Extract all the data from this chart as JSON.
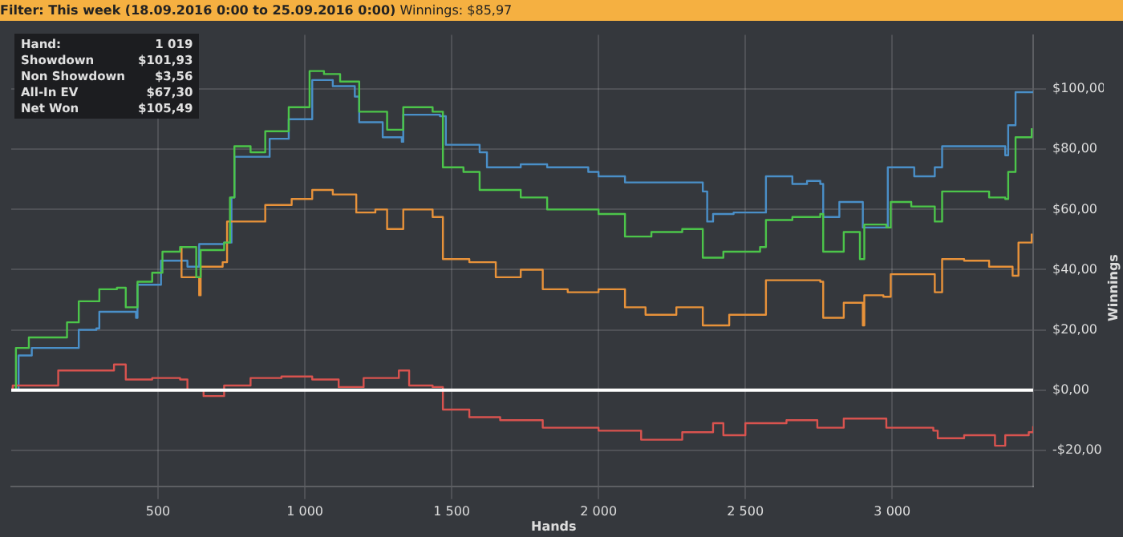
{
  "chart_data": {
    "type": "step",
    "title": "Filter: This week (18.09.2016 0:00 to 25.09.2016 0:00)",
    "subtitle": "Winnings: $85,97",
    "xlabel": "Hands",
    "ylabel": "Winnings",
    "annotations": [
      "Hand:",
      "1 019",
      "Showdown",
      "$101,93",
      "Non Showdown",
      "$3,56",
      "All-In EV",
      "$67,30",
      "Net Won",
      "$105,49"
    ],
    "xlim": [
      0,
      3480
    ],
    "xticks": [
      {
        "value": 500,
        "label": "500"
      },
      {
        "value": 1000,
        "label": "1 000"
      },
      {
        "value": 1500,
        "label": "1 500"
      },
      {
        "value": 2000,
        "label": "2 000"
      },
      {
        "value": 2500,
        "label": "2 500"
      },
      {
        "value": 3000,
        "label": "3 000"
      }
    ],
    "ylim": [
      -32,
      118
    ],
    "yticks": [
      {
        "value": -20,
        "label": "-$20,00"
      },
      {
        "value": 0,
        "label": "$0,00"
      },
      {
        "value": 20,
        "label": "$20,00"
      },
      {
        "value": 40,
        "label": "$40,00"
      },
      {
        "value": 60,
        "label": "$60,00"
      },
      {
        "value": 80,
        "label": "$80,00"
      },
      {
        "value": 100,
        "label": "$100,00"
      }
    ],
    "grid": true,
    "marker": "none",
    "ref_lines": [
      {
        "axis": "y",
        "value": 0,
        "color": "#ffffff"
      }
    ],
    "series": [
      {
        "color": "#4a8fc8",
        "x": [
          0,
          25,
          70,
          220,
          230,
          290,
          300,
          425,
          430,
          510,
          585,
          600,
          640,
          725,
          750,
          760,
          850,
          880,
          945,
          1025,
          1095,
          1170,
          1185,
          1265,
          1330,
          1335,
          1460,
          1480,
          1595,
          1620,
          1735,
          1825,
          1965,
          2000,
          2090,
          2355,
          2370,
          2390,
          2460,
          2570,
          2660,
          2710,
          2755,
          2765,
          2820,
          2900,
          2970,
          2985,
          3075,
          3145,
          3170,
          3375,
          3385,
          3395,
          3420,
          3480
        ],
        "values": [
          0,
          11.5,
          14,
          14,
          20,
          20.5,
          26,
          24,
          35,
          43,
          43,
          41,
          48.5,
          49,
          64,
          77.5,
          77.5,
          83.5,
          90,
          103,
          101,
          97.5,
          89,
          84,
          82.5,
          91.5,
          91,
          81.5,
          79,
          74,
          75,
          74,
          72.5,
          71,
          69,
          66,
          56,
          58.5,
          59,
          71,
          68.5,
          69.5,
          68.5,
          57.5,
          62.5,
          54,
          54,
          74,
          71,
          74,
          81,
          81,
          78,
          88,
          99,
          99
        ]
      },
      {
        "color": "#e8923a",
        "x": [
          575,
          580,
          640,
          645,
          720,
          735,
          815,
          865,
          955,
          1025,
          1095,
          1175,
          1240,
          1280,
          1335,
          1435,
          1470,
          1560,
          1650,
          1735,
          1810,
          1895,
          2000,
          2090,
          2160,
          2265,
          2355,
          2445,
          2550,
          2570,
          2660,
          2755,
          2765,
          2835,
          2900,
          2905,
          2970,
          2995,
          3065,
          3145,
          3170,
          3245,
          3330,
          3410,
          3430,
          3475
        ],
        "values": [
          47.5,
          37.5,
          31.5,
          41,
          42.5,
          56,
          56,
          61.5,
          63.5,
          66.5,
          65,
          59,
          60,
          53.5,
          60,
          57.5,
          43.5,
          42.5,
          37.5,
          40,
          33.5,
          32.5,
          33.5,
          27.5,
          25,
          27.5,
          21.5,
          25,
          25,
          36.5,
          36.5,
          36,
          24,
          29,
          21.5,
          31.5,
          31,
          38.5,
          38.5,
          32.5,
          43.5,
          43,
          41,
          38,
          49,
          52
        ]
      },
      {
        "color": "#d9534f",
        "x": [
          0,
          5,
          160,
          350,
          390,
          480,
          575,
          600,
          655,
          725,
          815,
          920,
          1025,
          1115,
          1200,
          1320,
          1355,
          1435,
          1470,
          1560,
          1665,
          1810,
          2000,
          2145,
          2285,
          2390,
          2425,
          2500,
          2640,
          2745,
          2835,
          2980,
          3140,
          3155,
          3245,
          3350,
          3385,
          3465,
          3480
        ],
        "values": [
          0,
          1.5,
          6.5,
          8.5,
          3.5,
          4,
          3.5,
          0,
          -2,
          1.5,
          4,
          4.5,
          3.5,
          1,
          4,
          6.5,
          1.5,
          1,
          -6.5,
          -9,
          -10,
          -12.5,
          -13.5,
          -16.5,
          -14,
          -11,
          -15,
          -11,
          -10,
          -12.5,
          -9.5,
          -12.5,
          -13.5,
          -16,
          -15,
          -18.5,
          -15,
          -14,
          -12
        ]
      },
      {
        "color": "#4cc54a",
        "x": [
          0,
          16,
          60,
          190,
          230,
          300,
          360,
          390,
          430,
          480,
          515,
          575,
          630,
          645,
          725,
          745,
          760,
          815,
          865,
          945,
          1016,
          1065,
          1120,
          1185,
          1265,
          1280,
          1335,
          1435,
          1470,
          1540,
          1595,
          1735,
          1825,
          2000,
          2090,
          2180,
          2285,
          2355,
          2425,
          2550,
          2570,
          2660,
          2755,
          2765,
          2835,
          2890,
          2905,
          2980,
          2995,
          3065,
          3145,
          3170,
          3245,
          3330,
          3385,
          3395,
          3420,
          3475
        ],
        "values": [
          0,
          14,
          17.5,
          22.5,
          29.5,
          33.5,
          34,
          27.5,
          36,
          39,
          46,
          47.5,
          37.5,
          46.5,
          49,
          64,
          81,
          79,
          86,
          94,
          106,
          105,
          102.5,
          92.5,
          92.5,
          86.5,
          94,
          92.5,
          74,
          72.5,
          66.5,
          64,
          60,
          58.5,
          51,
          52.5,
          53.5,
          44,
          46,
          47.5,
          56.5,
          57.5,
          58.5,
          46,
          52.5,
          43.5,
          55,
          54,
          62.5,
          61,
          56,
          66,
          66,
          64,
          63.5,
          72.5,
          84,
          87
        ]
      }
    ]
  }
}
